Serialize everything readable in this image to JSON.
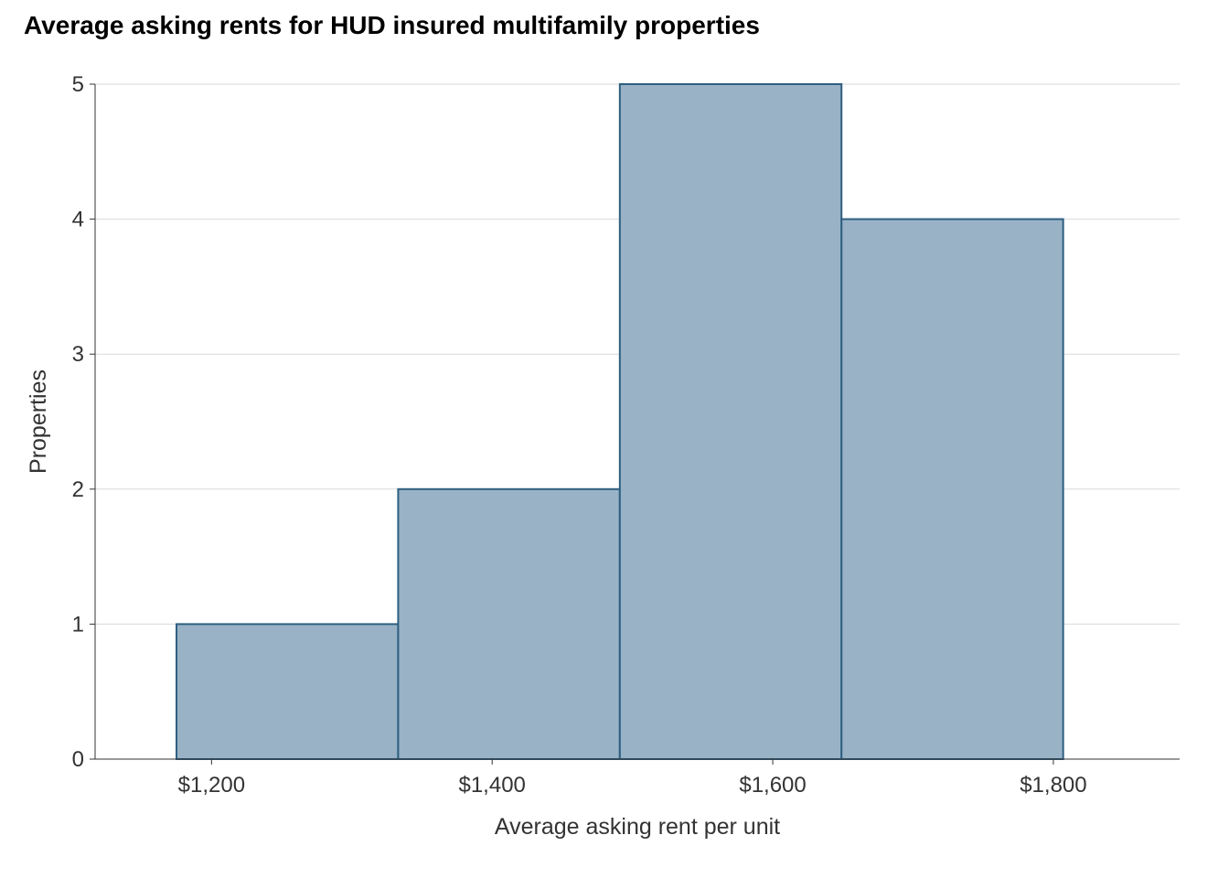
{
  "chart_data": {
    "type": "bar",
    "title": "Average asking rents for HUD insured multifamily properties",
    "xlabel": "Average asking rent per unit",
    "ylabel": "Properties",
    "bins": [
      {
        "start": 1175,
        "end": 1333,
        "count": 1
      },
      {
        "start": 1333,
        "end": 1491,
        "count": 2
      },
      {
        "start": 1491,
        "end": 1649,
        "count": 5
      },
      {
        "start": 1649,
        "end": 1807,
        "count": 4
      }
    ],
    "xlim": [
      1117,
      1890
    ],
    "ylim": [
      0,
      5
    ],
    "x_ticks": [
      {
        "value": 1200,
        "label": "$1,200"
      },
      {
        "value": 1400,
        "label": "$1,400"
      },
      {
        "value": 1600,
        "label": "$1,600"
      },
      {
        "value": 1800,
        "label": "$1,800"
      }
    ],
    "y_ticks": [
      {
        "value": 0,
        "label": "0"
      },
      {
        "value": 1,
        "label": "1"
      },
      {
        "value": 2,
        "label": "2"
      },
      {
        "value": 3,
        "label": "3"
      },
      {
        "value": 4,
        "label": "4"
      },
      {
        "value": 5,
        "label": "5"
      }
    ],
    "grid": "horizontal",
    "legend": "none",
    "bar_fill": "#99b2c6",
    "bar_stroke": "#2f5f80"
  }
}
